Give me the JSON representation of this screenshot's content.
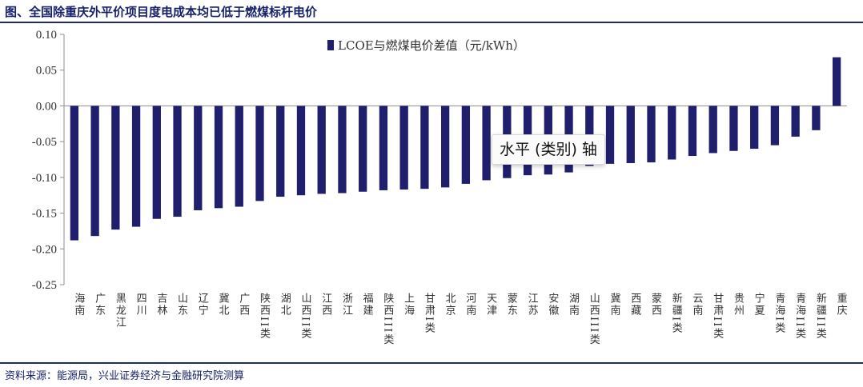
{
  "figure_title": "图、全国除重庆外平价项目度电成本均已低于燃煤标杆电价",
  "source_note": "资料来源：能源局，兴业证券经济与金融研究院测算",
  "tooltip_text": "水平 (类别) 轴",
  "colors": {
    "bar": "#1f1f6e",
    "frame": "#1f2a6b",
    "axis": "#8c8c8c"
  },
  "chart_data": {
    "type": "bar",
    "title": "",
    "xlabel": "",
    "ylabel": "",
    "ylim": [
      -0.25,
      0.1
    ],
    "yticks": [
      0.1,
      0.05,
      0.0,
      -0.05,
      -0.1,
      -0.15,
      -0.2,
      -0.25
    ],
    "ytick_labels": [
      "0.10",
      "0.05",
      "0.00",
      "-0.05",
      "-0.10",
      "-0.15",
      "-0.20",
      "-0.25"
    ],
    "legend_position": "top-center",
    "grid": false,
    "categories": [
      "海南",
      "广东",
      "黑龙江",
      "四川",
      "吉林",
      "山东",
      "辽宁",
      "冀北",
      "广西",
      "陕西II类",
      "湖北",
      "山西II类",
      "江西",
      "浙江",
      "福建",
      "陕西III类",
      "上海",
      "甘肃I类",
      "北京",
      "河南",
      "天津",
      "蒙东",
      "江苏",
      "安徽",
      "湖南",
      "山西III类",
      "冀南",
      "西藏",
      "蒙西",
      "新疆I类",
      "云南",
      "甘肃II类",
      "贵州",
      "宁夏",
      "青海I类",
      "青海II类",
      "新疆II类",
      "重庆"
    ],
    "series": [
      {
        "name": "LCOE与燃煤电价差值（元/kWh）",
        "values": [
          -0.188,
          -0.182,
          -0.173,
          -0.169,
          -0.158,
          -0.155,
          -0.146,
          -0.143,
          -0.141,
          -0.133,
          -0.127,
          -0.125,
          -0.123,
          -0.122,
          -0.12,
          -0.118,
          -0.117,
          -0.116,
          -0.114,
          -0.109,
          -0.104,
          -0.101,
          -0.097,
          -0.096,
          -0.093,
          -0.084,
          -0.081,
          -0.08,
          -0.079,
          -0.075,
          -0.07,
          -0.066,
          -0.063,
          -0.06,
          -0.055,
          -0.043,
          -0.034,
          0.068
        ]
      }
    ]
  }
}
